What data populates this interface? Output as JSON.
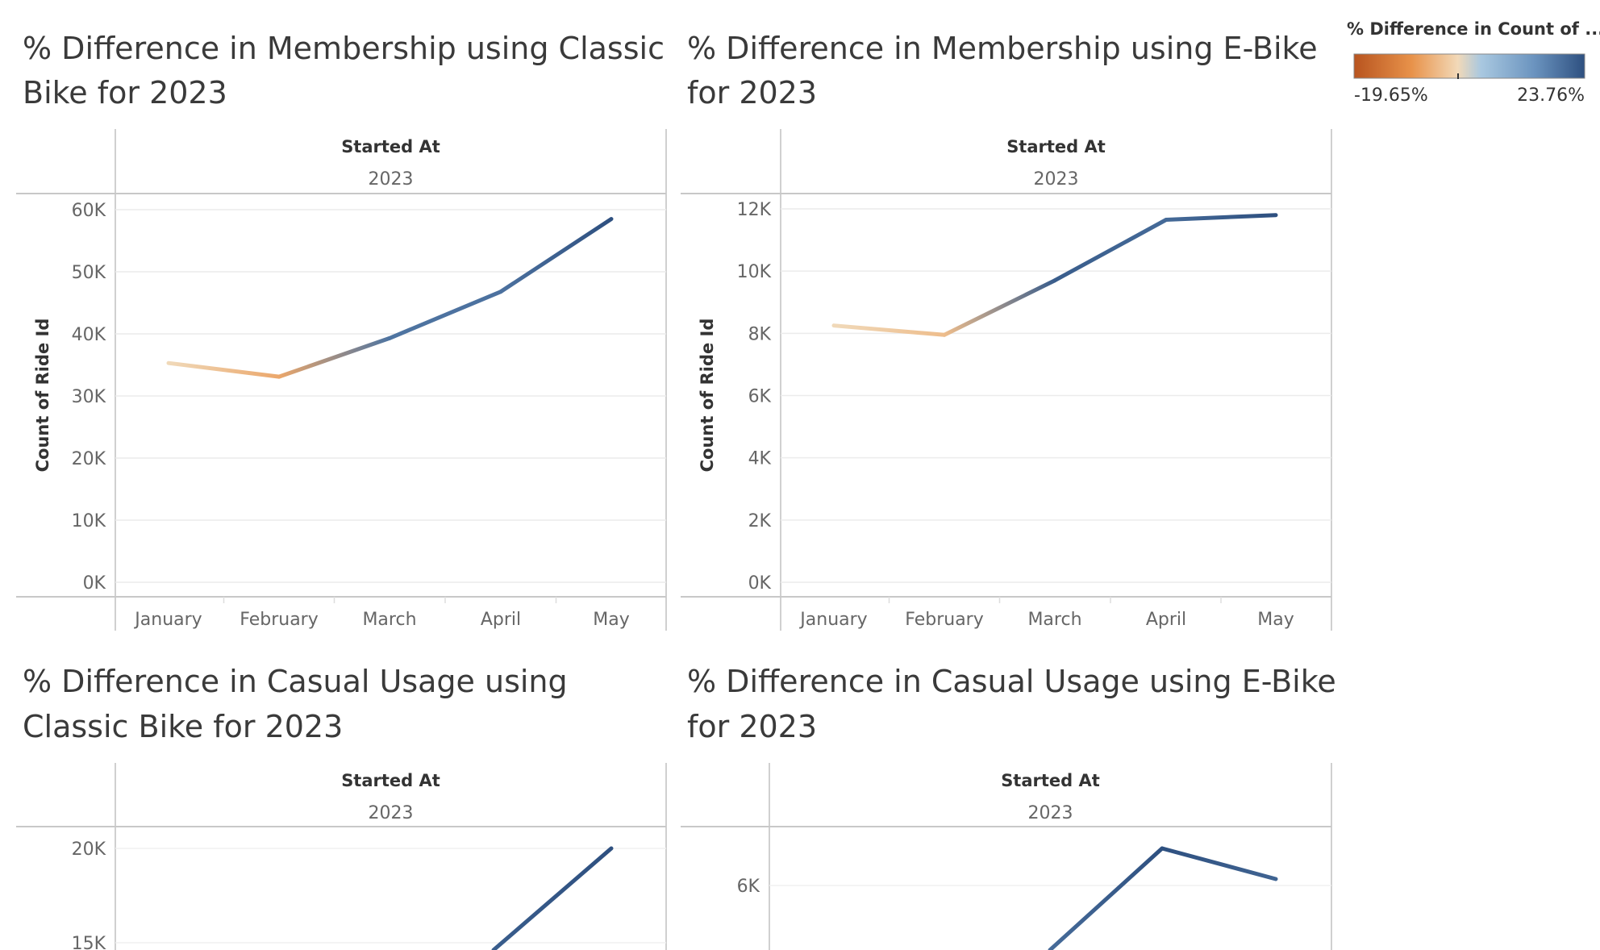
{
  "legend": {
    "title": "% Difference in Count of ...",
    "min_label": "-19.65%",
    "max_label": "23.76%",
    "min_value": -19.65,
    "max_value": 23.76,
    "colors": [
      "#b8541f",
      "#e8924a",
      "#f2d9b8",
      "#a9c8e0",
      "#6b94bf",
      "#2e5080"
    ]
  },
  "chart_data": [
    {
      "type": "line",
      "title": "% Difference in Membership using Classic Bike for 2023",
      "header": "Started At",
      "header_value": "2023",
      "ylabel": "Count of Ride Id",
      "categories": [
        "January",
        "February",
        "March",
        "April",
        "May"
      ],
      "values": [
        35300,
        33100,
        39300,
        46800,
        58500
      ],
      "pct_diff": [
        0,
        -6.2,
        18.7,
        19.1,
        23.76
      ],
      "yticks": [
        "0K",
        "10K",
        "20K",
        "30K",
        "40K",
        "50K",
        "60K"
      ],
      "ytick_values": [
        0,
        10000,
        20000,
        30000,
        40000,
        50000,
        60000
      ],
      "ylim": [
        0,
        61500
      ]
    },
    {
      "type": "line",
      "title": "% Difference in Membership using E-Bike for 2023",
      "header": "Started At",
      "header_value": "2023",
      "ylabel": "Count of Ride Id",
      "categories": [
        "January",
        "February",
        "March",
        "April",
        "May"
      ],
      "values": [
        8250,
        7950,
        9700,
        11650,
        11800
      ],
      "pct_diff": [
        0,
        -3.6,
        22.0,
        20.1,
        23.76
      ],
      "yticks": [
        "0K",
        "2K",
        "4K",
        "6K",
        "8K",
        "10K",
        "12K"
      ],
      "ytick_values": [
        0,
        2000,
        4000,
        6000,
        8000,
        10000,
        12000
      ],
      "ylim": [
        0,
        12300
      ]
    },
    {
      "type": "line",
      "title": "% Difference in Casual Usage using Classic Bike for 2023",
      "header": "Started At",
      "header_value": "2023",
      "ylabel": "",
      "categories": [
        "January",
        "February",
        "March",
        "April",
        "May"
      ],
      "values": [
        null,
        null,
        null,
        14900,
        20000
      ],
      "pct_diff": [
        null,
        null,
        null,
        22.0,
        23.76
      ],
      "yticks": [
        "15K",
        "20K"
      ],
      "ytick_values": [
        15000,
        20000
      ],
      "ylim": [
        null,
        20000
      ]
    },
    {
      "type": "line",
      "title": "% Difference in Casual Usage using E-Bike for 2023",
      "header": "Started At",
      "header_value": "2023",
      "ylabel": "",
      "categories": [
        "January",
        "February",
        "March",
        "April",
        "May"
      ],
      "values": [
        null,
        null,
        5000,
        6550,
        6050
      ],
      "pct_diff": [
        null,
        null,
        20.0,
        23.76,
        21.0
      ],
      "yticks": [
        "6K"
      ],
      "ytick_values": [
        6000
      ],
      "ylim": [
        null,
        null
      ]
    }
  ]
}
